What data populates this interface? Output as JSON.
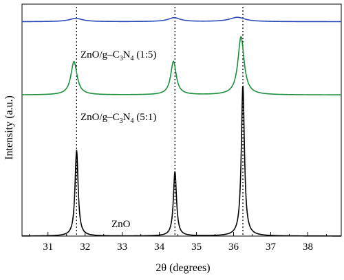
{
  "chart_data": {
    "type": "line",
    "xlabel": "2θ (degrees)",
    "ylabel": "Intensity (a.u.)",
    "xlim": [
      30.3,
      38.9
    ],
    "ylim": [
      0,
      1
    ],
    "x_ticks": [
      "31",
      "32",
      "33",
      "34",
      "35",
      "36",
      "37",
      "38"
    ],
    "grid": false,
    "legend": "none",
    "reference_lines_x": [
      31.77,
      34.42,
      36.25
    ],
    "series": [
      {
        "name": "ZnO",
        "label_parts": [
          "ZnO"
        ],
        "color": "#000000",
        "baseline": 0.0,
        "peaks": [
          {
            "center": 31.77,
            "height": 0.4,
            "width": 0.05
          },
          {
            "center": 34.42,
            "height": 0.3,
            "width": 0.05
          },
          {
            "center": 36.25,
            "height": 0.7,
            "width": 0.05
          }
        ]
      },
      {
        "name": "ZnO/g-C3N4 (5:1)",
        "label_parts": [
          "ZnO/g–C",
          "3",
          "N",
          "4",
          " (5:1)"
        ],
        "color": "#1a8f3a",
        "baseline": 0.655,
        "peaks": [
          {
            "center": 31.7,
            "height": 0.155,
            "width": 0.1
          },
          {
            "center": 34.38,
            "height": 0.155,
            "width": 0.09
          },
          {
            "center": 36.2,
            "height": 0.27,
            "width": 0.1
          }
        ]
      },
      {
        "name": "ZnO/g-C3N4 (1:5)",
        "label_parts": [
          "ZnO/g–C",
          "3",
          "N",
          "4",
          " (1:5)"
        ],
        "color": "#2b4bb8",
        "baseline": 0.995,
        "peaks": [
          {
            "center": 31.75,
            "height": 0.015,
            "width": 0.22
          },
          {
            "center": 34.4,
            "height": 0.018,
            "width": 0.2
          },
          {
            "center": 36.1,
            "height": 0.02,
            "width": 0.25
          }
        ]
      }
    ]
  }
}
